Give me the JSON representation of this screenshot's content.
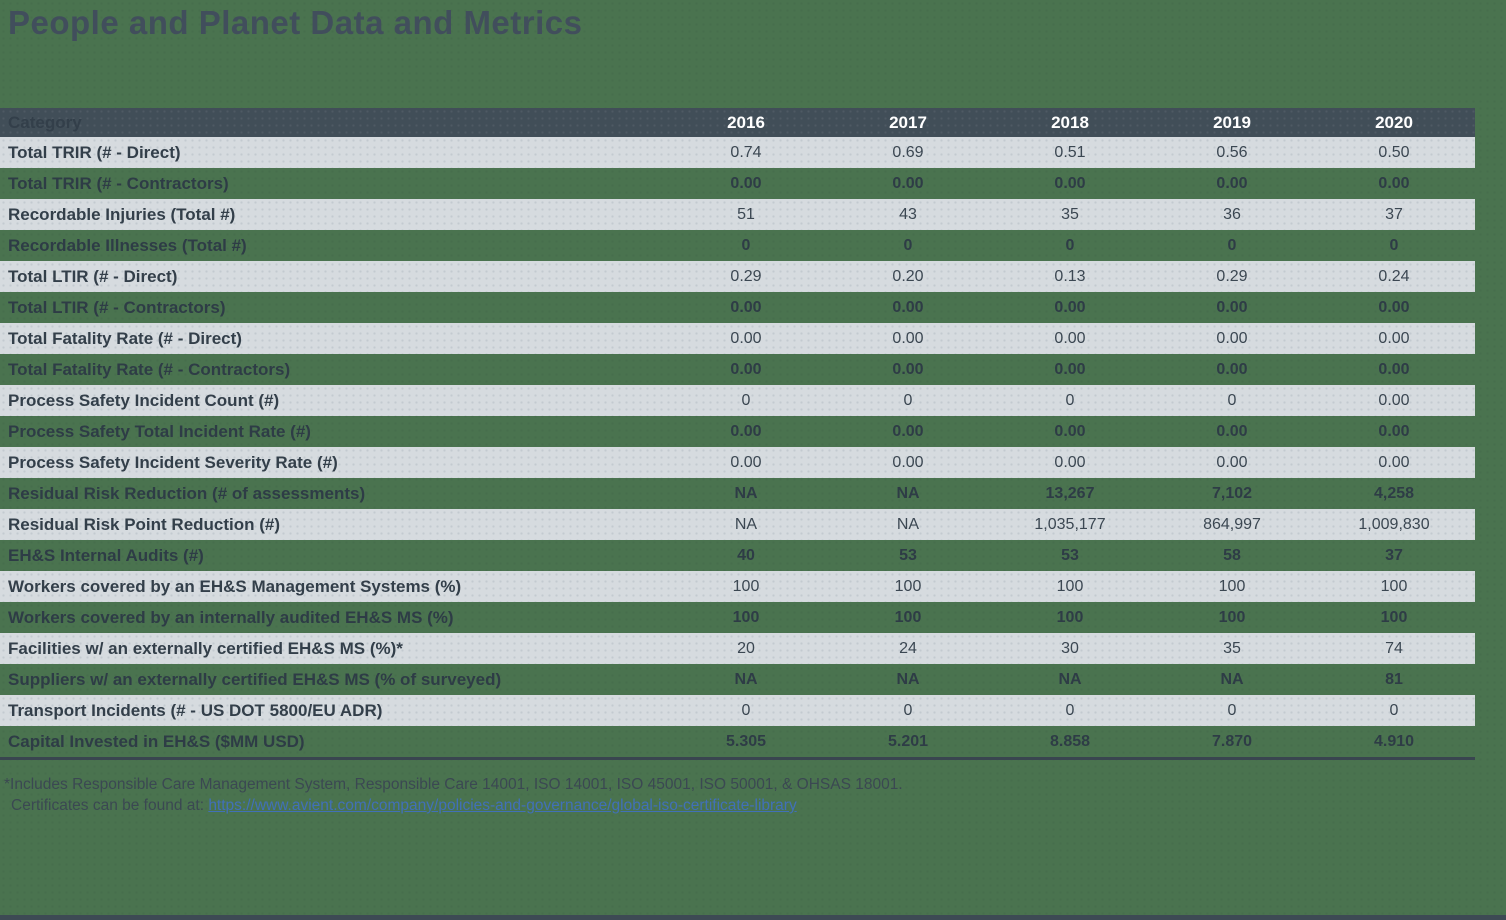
{
  "page": {
    "title": "People and Planet Data and Metrics",
    "background_color": "#4A734F",
    "header_bar_color": "#414E58",
    "light_row_color": "#D6DBDF",
    "text_color": "#333F4A",
    "link_color": "#4170B8"
  },
  "table": {
    "header": {
      "category_label": "Category",
      "years": [
        "2016",
        "2017",
        "2018",
        "2019",
        "2020"
      ]
    },
    "rows": [
      {
        "category": "Total TRIR (# - Direct)",
        "values": [
          "0.74",
          "0.69",
          "0.51",
          "0.56",
          "0.50"
        ]
      },
      {
        "category": "Total TRIR (# - Contractors)",
        "values": [
          "0.00",
          "0.00",
          "0.00",
          "0.00",
          "0.00"
        ]
      },
      {
        "category": "Recordable Injuries (Total #)",
        "values": [
          "51",
          "43",
          "35",
          "36",
          "37"
        ]
      },
      {
        "category": "Recordable Illnesses (Total #)",
        "values": [
          "0",
          "0",
          "0",
          "0",
          "0"
        ]
      },
      {
        "category": "Total LTIR (# - Direct)",
        "values": [
          "0.29",
          "0.20",
          "0.13",
          "0.29",
          "0.24"
        ]
      },
      {
        "category": "Total LTIR (# - Contractors)",
        "values": [
          "0.00",
          "0.00",
          "0.00",
          "0.00",
          "0.00"
        ]
      },
      {
        "category": "Total Fatality Rate (# - Direct)",
        "values": [
          "0.00",
          "0.00",
          "0.00",
          "0.00",
          "0.00"
        ]
      },
      {
        "category": "Total Fatality Rate (# - Contractors)",
        "values": [
          "0.00",
          "0.00",
          "0.00",
          "0.00",
          "0.00"
        ]
      },
      {
        "category": "Process Safety Incident Count (#)",
        "values": [
          "0",
          "0",
          "0",
          "0",
          "0.00"
        ]
      },
      {
        "category": "Process Safety Total Incident Rate (#)",
        "values": [
          "0.00",
          "0.00",
          "0.00",
          "0.00",
          "0.00"
        ]
      },
      {
        "category": "Process Safety Incident Severity Rate (#)",
        "values": [
          "0.00",
          "0.00",
          "0.00",
          "0.00",
          "0.00"
        ]
      },
      {
        "category": "Residual Risk Reduction (# of assessments)",
        "values": [
          "NA",
          "NA",
          "13,267",
          "7,102",
          "4,258"
        ]
      },
      {
        "category": "Residual Risk Point Reduction (#)",
        "values": [
          "NA",
          "NA",
          "1,035,177",
          "864,997",
          "1,009,830"
        ]
      },
      {
        "category": "EH&S Internal Audits (#)",
        "values": [
          "40",
          "53",
          "53",
          "58",
          "37"
        ]
      },
      {
        "category": "Workers covered by an EH&S Management Systems (%)",
        "values": [
          "100",
          "100",
          "100",
          "100",
          "100"
        ]
      },
      {
        "category": "Workers covered by an internally audited EH&S MS (%)",
        "values": [
          "100",
          "100",
          "100",
          "100",
          "100"
        ]
      },
      {
        "category": "Facilities w/ an externally certified EH&S MS (%)*",
        "values": [
          "20",
          "24",
          "30",
          "35",
          "74"
        ]
      },
      {
        "category": "Suppliers w/ an externally certified EH&S MS (% of surveyed)",
        "values": [
          "NA",
          "NA",
          "NA",
          "NA",
          "81"
        ]
      },
      {
        "category": "Transport Incidents (# - US DOT 5800/EU ADR)",
        "values": [
          "0",
          "0",
          "0",
          "0",
          "0"
        ]
      },
      {
        "category": "Capital Invested in EH&S ($MM USD)",
        "values": [
          "5.305",
          "5.201",
          "8.858",
          "7.870",
          "4.910"
        ]
      }
    ]
  },
  "footnote": {
    "line1": "*Includes Responsible Care Management System, Responsible Care 14001, ISO 14001, ISO 45001, ISO 50001, & OHSAS 18001.",
    "line2_prefix": "Certificates can be found at: ",
    "link_text": "https://www.avient.com/company/policies-and-governance/global-iso-certificate-library"
  }
}
